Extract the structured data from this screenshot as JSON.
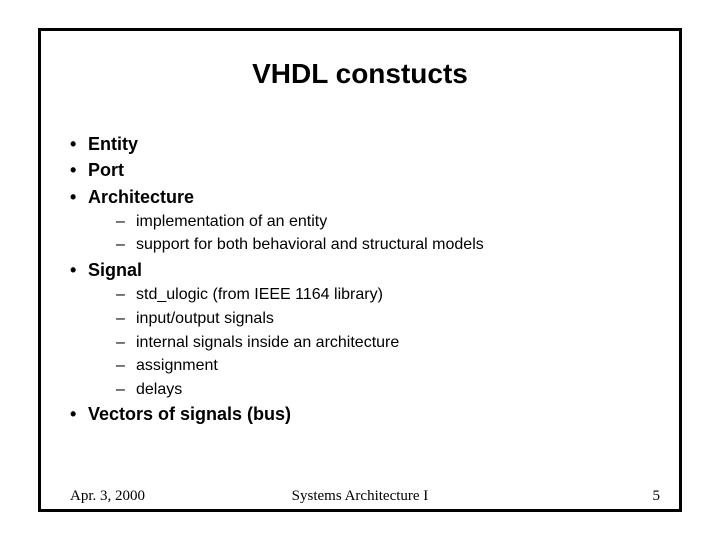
{
  "slide": {
    "title": "VHDL constucts",
    "bullets": [
      {
        "level": 1,
        "text": "Entity"
      },
      {
        "level": 1,
        "text": "Port"
      },
      {
        "level": 1,
        "text": "Architecture"
      },
      {
        "level": 2,
        "text": "implementation of an entity"
      },
      {
        "level": 2,
        "text": "support for both behavioral and structural models"
      },
      {
        "level": 1,
        "text": "Signal"
      },
      {
        "level": 2,
        "text": "std_ulogic (from IEEE 1164 library)"
      },
      {
        "level": 2,
        "text": "input/output signals"
      },
      {
        "level": 2,
        "text": "internal signals inside an architecture"
      },
      {
        "level": 2,
        "text": "assignment"
      },
      {
        "level": 2,
        "text": "delays"
      },
      {
        "level": 1,
        "text": "Vectors of signals (bus)"
      }
    ],
    "footer": {
      "date": "Apr. 3, 2000",
      "center": "Systems Architecture I",
      "page": "5"
    },
    "style": {
      "bullet_l1_marker": "•",
      "bullet_l2_marker": "–",
      "title_fontsize": 28,
      "l1_fontsize": 18,
      "l2_fontsize": 16,
      "footer_fontsize": 15,
      "border_color": "#000000",
      "background_color": "#ffffff",
      "text_color": "#000000"
    }
  }
}
